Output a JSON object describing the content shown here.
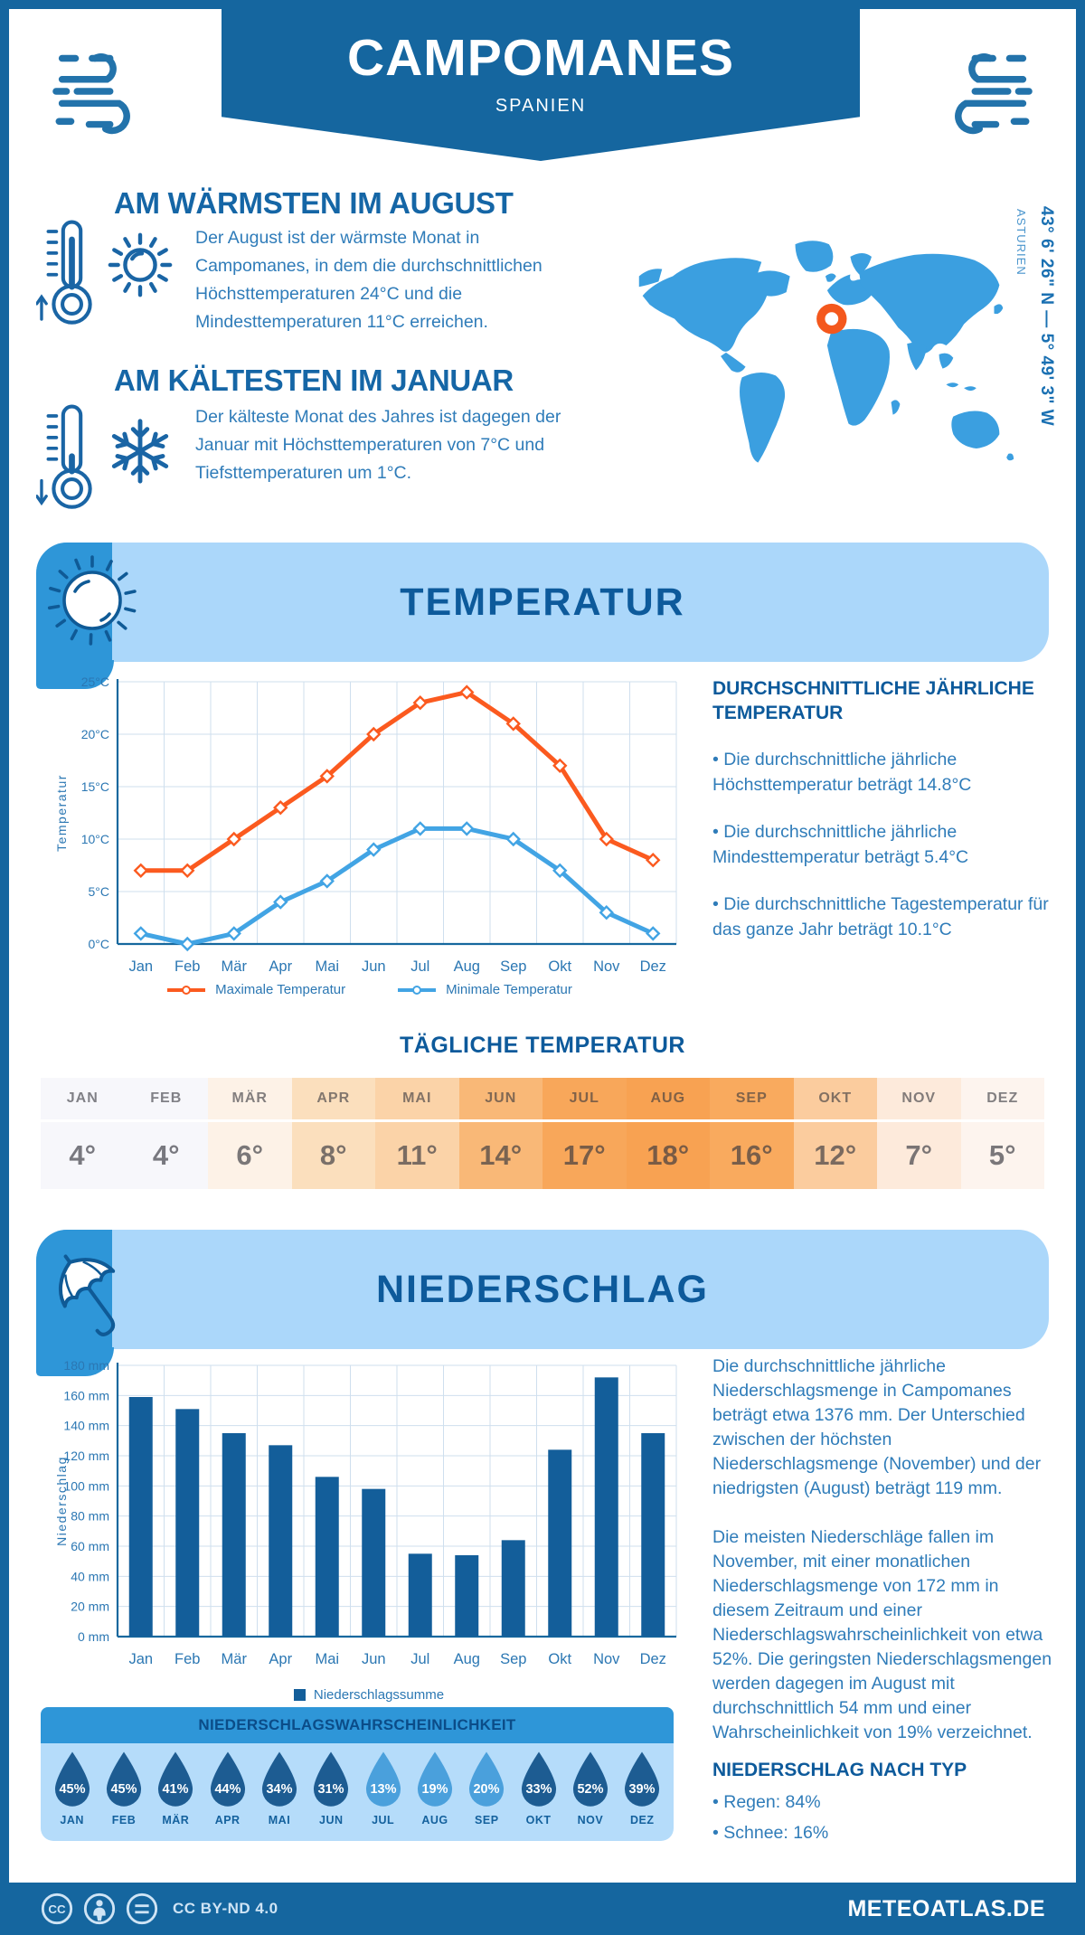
{
  "header": {
    "title": "CAMPOMANES",
    "subtitle": "SPANIEN"
  },
  "location": {
    "coordinates": "43° 6' 26\" N — 5° 49' 3\" W",
    "region": "ASTURIEN"
  },
  "warmest": {
    "title": "AM WÄRMSTEN IM AUGUST",
    "text": "Der August ist der wärmste Monat in Campomanes, in dem die durchschnittlichen Höchsttemperaturen 24°C und die Mindesttemperaturen 11°C erreichen."
  },
  "coldest": {
    "title": "AM KÄLTESTEN IM JANUAR",
    "text": "Der kälteste Monat des Jahres ist dagegen der Januar mit Höchsttemperaturen von 7°C und Tiefsttemperaturen um 1°C."
  },
  "temperature_section": {
    "title": "TEMPERATUR",
    "stats_title": "DURCHSCHNITTLICHE JÄHRLICHE TEMPERATUR",
    "stats": [
      "• Die durchschnittliche jährliche Höchsttemperatur beträgt 14.8°C",
      "• Die durchschnittliche jährliche Mindesttemperatur beträgt 5.4°C",
      "• Die durchschnittliche Tagestemperatur für das ganze Jahr beträgt 10.1°C"
    ]
  },
  "daily": {
    "title": "TÄGLICHE TEMPERATUR",
    "months": [
      "JAN",
      "FEB",
      "MÄR",
      "APR",
      "MAI",
      "JUN",
      "JUL",
      "AUG",
      "SEP",
      "OKT",
      "NOV",
      "DEZ"
    ],
    "values": [
      "4°",
      "4°",
      "6°",
      "8°",
      "11°",
      "14°",
      "17°",
      "18°",
      "16°",
      "12°",
      "7°",
      "5°"
    ],
    "cell_colors": [
      "#f7f7fb",
      "#f7f7fb",
      "#fdf2e7",
      "#fbdfbd",
      "#fbd3a8",
      "#f9b877",
      "#f8a75a",
      "#f8a252",
      "#f9aa5e",
      "#fbcc9e",
      "#fdeadb",
      "#fdf4ee"
    ]
  },
  "precipitation_section": {
    "title": "NIEDERSCHLAG",
    "paragraph1": "Die durchschnittliche jährliche Niederschlagsmenge in Campomanes beträgt etwa 1376 mm. Der Unterschied zwischen der höchsten Niederschlagsmenge (November) und der niedrigsten (August) beträgt 119 mm.",
    "paragraph2": "Die meisten Niederschläge fallen im November, mit einer monatlichen Niederschlagsmenge von 172 mm in diesem Zeitraum und einer Niederschlagswahrscheinlichkeit von etwa 52%. Die geringsten Niederschlagsmengen werden dagegen im August mit durchschnittlich 54 mm und einer Wahrscheinlichkeit von 19% verzeichnet.",
    "type_title": "NIEDERSCHLAG NACH TYP",
    "types": [
      "• Regen: 84%",
      "• Schnee: 16%"
    ]
  },
  "probability": {
    "title": "NIEDERSCHLAGSWAHRSCHEINLICHKEIT",
    "months": [
      "JAN",
      "FEB",
      "MÄR",
      "APR",
      "MAI",
      "JUN",
      "JUL",
      "AUG",
      "SEP",
      "OKT",
      "NOV",
      "DEZ"
    ],
    "values": [
      45,
      45,
      41,
      44,
      34,
      31,
      13,
      19,
      20,
      33,
      52,
      39
    ],
    "light": [
      false,
      false,
      false,
      false,
      false,
      false,
      true,
      true,
      true,
      false,
      false,
      false
    ]
  },
  "chart_data": [
    {
      "type": "line",
      "categories": [
        "Jan",
        "Feb",
        "Mär",
        "Apr",
        "Mai",
        "Jun",
        "Jul",
        "Aug",
        "Sep",
        "Okt",
        "Nov",
        "Dez"
      ],
      "series": [
        {
          "name": "Maximale Temperatur",
          "color": "#fb5a1f",
          "values": [
            7,
            7,
            10,
            13,
            16,
            20,
            23,
            24,
            21,
            17,
            10,
            8
          ]
        },
        {
          "name": "Minimale Temperatur",
          "color": "#42a4e4",
          "values": [
            1,
            0,
            1,
            4,
            6,
            9,
            11,
            11,
            10,
            7,
            3,
            1
          ]
        }
      ],
      "ylabel": "Temperatur",
      "ylim": [
        0,
        25
      ],
      "ytick_step": 5,
      "ytick_suffix": "°C",
      "grid": true,
      "legend_position": "bottom"
    },
    {
      "type": "bar",
      "categories": [
        "Jan",
        "Feb",
        "Mär",
        "Apr",
        "Mai",
        "Jun",
        "Jul",
        "Aug",
        "Sep",
        "Okt",
        "Nov",
        "Dez"
      ],
      "series": [
        {
          "name": "Niederschlagssumme",
          "color": "#135e9a",
          "values": [
            159,
            151,
            135,
            127,
            106,
            98,
            55,
            54,
            64,
            124,
            172,
            135
          ]
        }
      ],
      "ylabel": "Niederschlag",
      "ylim": [
        0,
        180
      ],
      "ytick_step": 20,
      "ytick_suffix": " mm",
      "grid": true,
      "legend_position": "bottom"
    }
  ],
  "footer": {
    "license": "CC BY-ND 4.0",
    "brand": "METEOATLAS.DE"
  },
  "colors": {
    "accent_dark": "#15669f",
    "band_light": "#abd7fa",
    "band_medium": "#2e96d8",
    "heading": "#0d5a9b",
    "body_text": "#2f7cb9",
    "axis": "#16689e",
    "tick": "#2b77b3",
    "grid": "#cfdfee",
    "map": "#3b9fe0",
    "marker": "#f4581d",
    "drop_dark": "#1d5c92",
    "drop_light": "#4aa0dc",
    "footer_text": "#cfe4f5"
  }
}
